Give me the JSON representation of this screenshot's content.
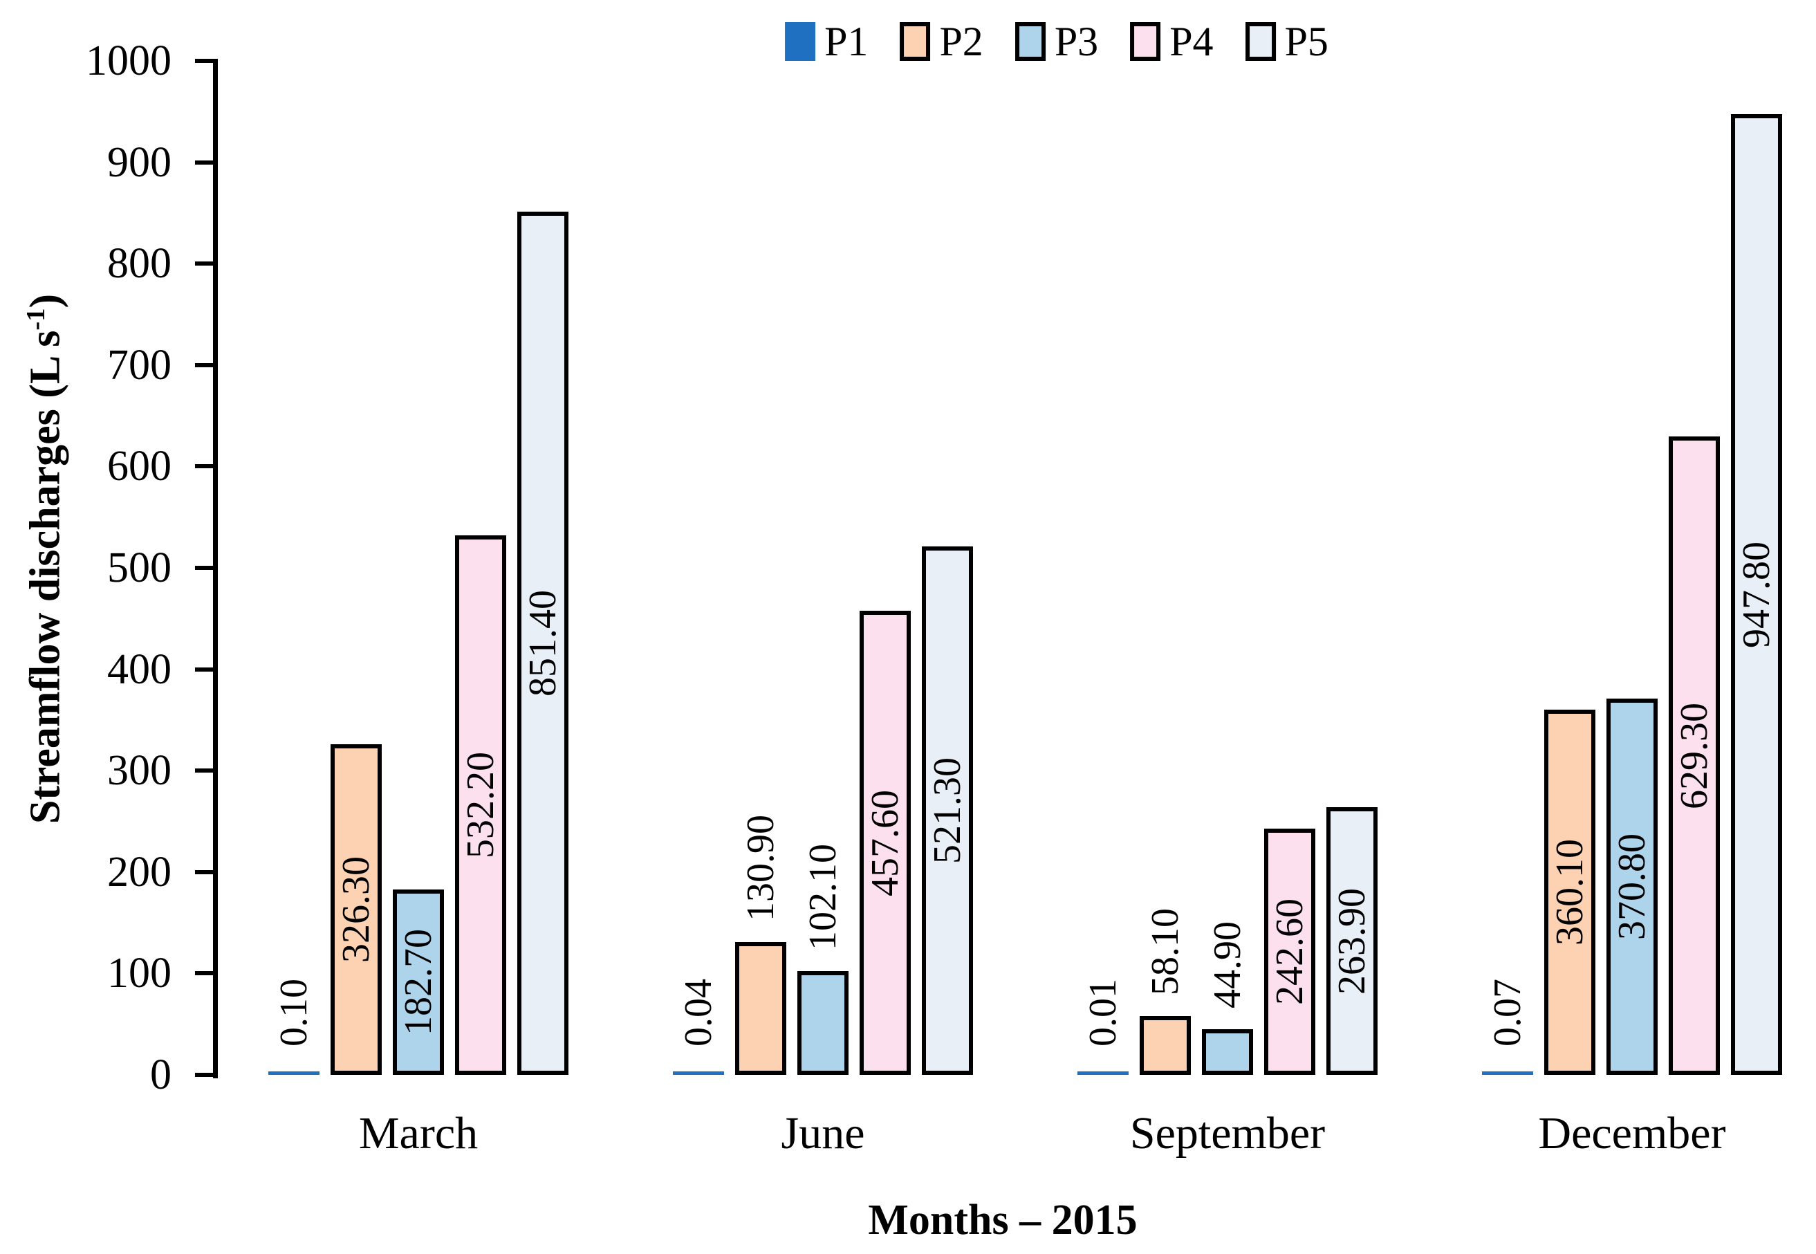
{
  "chart_data": {
    "type": "bar",
    "title": "",
    "xlabel": "Months – 2015",
    "ylabel": "Streamflow discharges (L s⁻¹)",
    "ylabel_prefix": "Streamflow discharges (L s",
    "ylabel_superscript": "-1",
    "ylabel_suffix": ")",
    "categories": [
      "March",
      "June",
      "September",
      "December"
    ],
    "series": [
      {
        "name": "P1",
        "color": "#1F70C0",
        "bordered": false,
        "values": [
          0.1,
          0.04,
          0.01,
          0.07
        ],
        "labels": [
          "0.10",
          "0.04",
          "0.01",
          "0.07"
        ]
      },
      {
        "name": "P2",
        "color": "#FCD2B2",
        "bordered": true,
        "values": [
          326.3,
          130.9,
          58.1,
          360.1
        ],
        "labels": [
          "326.30",
          "130.90",
          "58.10",
          "360.10"
        ]
      },
      {
        "name": "P3",
        "color": "#AED4EC",
        "bordered": true,
        "values": [
          182.7,
          102.1,
          44.9,
          370.8
        ],
        "labels": [
          "182.70",
          "102.10",
          "44.90",
          "370.80"
        ]
      },
      {
        "name": "P4",
        "color": "#FDE0ED",
        "bordered": true,
        "values": [
          532.2,
          457.6,
          242.6,
          629.3
        ],
        "labels": [
          "532.20",
          "457.60",
          "242.60",
          "629.30"
        ]
      },
      {
        "name": "P5",
        "color": "#E9EFF7",
        "bordered": true,
        "values": [
          851.4,
          521.3,
          263.9,
          947.8
        ],
        "labels": [
          "851.40",
          "521.30",
          "263.90",
          "947.80"
        ]
      }
    ],
    "y_axis": {
      "min": 0,
      "max": 1000,
      "step": 100,
      "tick_labels": [
        "0",
        "100",
        "200",
        "300",
        "400",
        "500",
        "600",
        "700",
        "800",
        "900",
        "1000"
      ]
    },
    "legend": {
      "position": "top",
      "entries": [
        "P1",
        "P2",
        "P3",
        "P4",
        "P5"
      ]
    },
    "grid": false,
    "bar_outline_color": "#000000",
    "text_color": "#000000",
    "background_color": "#FFFFFF"
  }
}
